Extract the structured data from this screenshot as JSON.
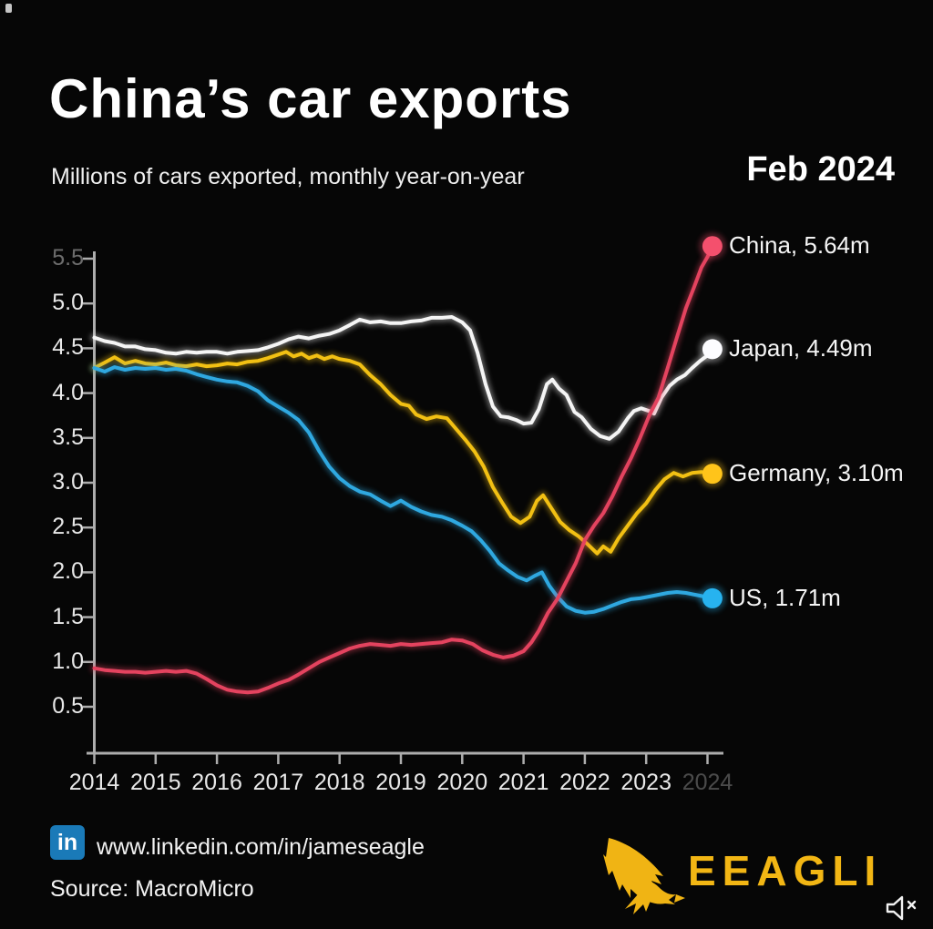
{
  "header": {
    "title": "China’s car exports",
    "subtitle": "Millions of cars exported, monthly year-on-year",
    "date_label": "Feb 2024"
  },
  "footer": {
    "linkedin_badge_text": "in",
    "linkedin_url": "www.linkedin.com/in/jameseagle",
    "source_text": "Source: MacroMicro",
    "brand_name": "EEAGLI",
    "brand_color": "#f2b614"
  },
  "chart_data": {
    "type": "line",
    "title": "China’s car exports",
    "subtitle": "Millions of cars exported, monthly year-on-year",
    "as_of": "Feb 2024",
    "grid": false,
    "legend_position": "right-of-line-ends",
    "x_axis": {
      "range": [
        2014,
        2024.25
      ],
      "tick_labels": [
        "2014",
        "2015",
        "2016",
        "2017",
        "2018",
        "2019",
        "2020",
        "2021",
        "2022",
        "2023",
        "2024"
      ],
      "dim_label": "2024"
    },
    "y_axis": {
      "range": [
        0,
        5.75
      ],
      "tick_labels": [
        "0.5",
        "1.0",
        "1.5",
        "2.0",
        "2.5",
        "3.0",
        "3.5",
        "4.0",
        "4.5",
        "5.0",
        "5.5"
      ],
      "dim_label": "5.5",
      "unit": "millions of cars"
    },
    "series": [
      {
        "name": "Japan",
        "end_label": "Japan, 4.49m",
        "end_value": 4.49,
        "color": "#f5f5f5",
        "dot_color": "#fcfcff",
        "points": [
          [
            2014.0,
            4.62
          ],
          [
            2014.17,
            4.58
          ],
          [
            2014.33,
            4.56
          ],
          [
            2014.5,
            4.52
          ],
          [
            2014.67,
            4.52
          ],
          [
            2014.83,
            4.49
          ],
          [
            2015.0,
            4.48
          ],
          [
            2015.17,
            4.45
          ],
          [
            2015.33,
            4.44
          ],
          [
            2015.5,
            4.46
          ],
          [
            2015.67,
            4.45
          ],
          [
            2015.83,
            4.46
          ],
          [
            2016.0,
            4.46
          ],
          [
            2016.17,
            4.44
          ],
          [
            2016.33,
            4.46
          ],
          [
            2016.5,
            4.47
          ],
          [
            2016.67,
            4.48
          ],
          [
            2016.83,
            4.51
          ],
          [
            2017.0,
            4.55
          ],
          [
            2017.17,
            4.6
          ],
          [
            2017.33,
            4.63
          ],
          [
            2017.5,
            4.61
          ],
          [
            2017.67,
            4.64
          ],
          [
            2017.83,
            4.66
          ],
          [
            2018.0,
            4.7
          ],
          [
            2018.17,
            4.76
          ],
          [
            2018.33,
            4.82
          ],
          [
            2018.5,
            4.79
          ],
          [
            2018.67,
            4.8
          ],
          [
            2018.83,
            4.78
          ],
          [
            2019.0,
            4.78
          ],
          [
            2019.17,
            4.8
          ],
          [
            2019.33,
            4.81
          ],
          [
            2019.5,
            4.84
          ],
          [
            2019.67,
            4.84
          ],
          [
            2019.83,
            4.85
          ],
          [
            2020.0,
            4.79
          ],
          [
            2020.13,
            4.7
          ],
          [
            2020.25,
            4.45
          ],
          [
            2020.38,
            4.1
          ],
          [
            2020.5,
            3.85
          ],
          [
            2020.63,
            3.74
          ],
          [
            2020.75,
            3.73
          ],
          [
            2020.88,
            3.7
          ],
          [
            2021.0,
            3.66
          ],
          [
            2021.13,
            3.67
          ],
          [
            2021.25,
            3.82
          ],
          [
            2021.38,
            4.1
          ],
          [
            2021.47,
            4.15
          ],
          [
            2021.58,
            4.05
          ],
          [
            2021.7,
            3.98
          ],
          [
            2021.83,
            3.79
          ],
          [
            2021.95,
            3.73
          ],
          [
            2022.1,
            3.6
          ],
          [
            2022.25,
            3.52
          ],
          [
            2022.4,
            3.49
          ],
          [
            2022.55,
            3.57
          ],
          [
            2022.7,
            3.72
          ],
          [
            2022.8,
            3.8
          ],
          [
            2022.92,
            3.83
          ],
          [
            2023.05,
            3.8
          ],
          [
            2023.13,
            3.77
          ],
          [
            2023.25,
            3.95
          ],
          [
            2023.38,
            4.08
          ],
          [
            2023.5,
            4.15
          ],
          [
            2023.63,
            4.2
          ],
          [
            2023.75,
            4.28
          ],
          [
            2023.88,
            4.36
          ],
          [
            2024.0,
            4.42
          ],
          [
            2024.08,
            4.49
          ]
        ]
      },
      {
        "name": "Germany",
        "end_label": "Germany, 3.10m",
        "end_value": 3.1,
        "color": "#f2c013",
        "dot_color": "#ffc41a",
        "points": [
          [
            2014.0,
            4.28
          ],
          [
            2014.17,
            4.34
          ],
          [
            2014.33,
            4.4
          ],
          [
            2014.5,
            4.33
          ],
          [
            2014.67,
            4.36
          ],
          [
            2014.83,
            4.33
          ],
          [
            2015.0,
            4.32
          ],
          [
            2015.17,
            4.34
          ],
          [
            2015.33,
            4.31
          ],
          [
            2015.5,
            4.3
          ],
          [
            2015.67,
            4.32
          ],
          [
            2015.83,
            4.3
          ],
          [
            2016.0,
            4.31
          ],
          [
            2016.17,
            4.33
          ],
          [
            2016.33,
            4.32
          ],
          [
            2016.5,
            4.35
          ],
          [
            2016.67,
            4.36
          ],
          [
            2016.83,
            4.39
          ],
          [
            2017.0,
            4.43
          ],
          [
            2017.13,
            4.46
          ],
          [
            2017.25,
            4.41
          ],
          [
            2017.38,
            4.44
          ],
          [
            2017.5,
            4.39
          ],
          [
            2017.63,
            4.42
          ],
          [
            2017.75,
            4.38
          ],
          [
            2017.88,
            4.41
          ],
          [
            2018.0,
            4.38
          ],
          [
            2018.17,
            4.36
          ],
          [
            2018.33,
            4.32
          ],
          [
            2018.5,
            4.2
          ],
          [
            2018.67,
            4.1
          ],
          [
            2018.83,
            3.98
          ],
          [
            2019.0,
            3.88
          ],
          [
            2019.13,
            3.86
          ],
          [
            2019.25,
            3.76
          ],
          [
            2019.42,
            3.71
          ],
          [
            2019.58,
            3.74
          ],
          [
            2019.75,
            3.72
          ],
          [
            2019.9,
            3.6
          ],
          [
            2020.05,
            3.48
          ],
          [
            2020.2,
            3.35
          ],
          [
            2020.35,
            3.18
          ],
          [
            2020.5,
            2.95
          ],
          [
            2020.65,
            2.78
          ],
          [
            2020.8,
            2.62
          ],
          [
            2020.95,
            2.55
          ],
          [
            2021.1,
            2.62
          ],
          [
            2021.22,
            2.8
          ],
          [
            2021.32,
            2.86
          ],
          [
            2021.45,
            2.72
          ],
          [
            2021.6,
            2.56
          ],
          [
            2021.75,
            2.47
          ],
          [
            2021.9,
            2.4
          ],
          [
            2022.05,
            2.31
          ],
          [
            2022.2,
            2.21
          ],
          [
            2022.3,
            2.29
          ],
          [
            2022.42,
            2.23
          ],
          [
            2022.55,
            2.38
          ],
          [
            2022.7,
            2.52
          ],
          [
            2022.85,
            2.66
          ],
          [
            2023.0,
            2.77
          ],
          [
            2023.15,
            2.92
          ],
          [
            2023.3,
            3.04
          ],
          [
            2023.45,
            3.11
          ],
          [
            2023.6,
            3.07
          ],
          [
            2023.75,
            3.11
          ],
          [
            2023.9,
            3.12
          ],
          [
            2024.08,
            3.1
          ]
        ]
      },
      {
        "name": "US",
        "end_label": "US, 1.71m",
        "end_value": 1.71,
        "color": "#2fa8e0",
        "dot_color": "#27b3ef",
        "points": [
          [
            2014.0,
            4.28
          ],
          [
            2014.17,
            4.24
          ],
          [
            2014.33,
            4.29
          ],
          [
            2014.5,
            4.26
          ],
          [
            2014.67,
            4.28
          ],
          [
            2014.83,
            4.27
          ],
          [
            2015.0,
            4.28
          ],
          [
            2015.17,
            4.26
          ],
          [
            2015.33,
            4.27
          ],
          [
            2015.5,
            4.25
          ],
          [
            2015.67,
            4.21
          ],
          [
            2015.83,
            4.18
          ],
          [
            2016.0,
            4.15
          ],
          [
            2016.17,
            4.13
          ],
          [
            2016.33,
            4.12
          ],
          [
            2016.5,
            4.08
          ],
          [
            2016.67,
            4.02
          ],
          [
            2016.83,
            3.92
          ],
          [
            2017.0,
            3.85
          ],
          [
            2017.17,
            3.78
          ],
          [
            2017.33,
            3.7
          ],
          [
            2017.5,
            3.56
          ],
          [
            2017.67,
            3.35
          ],
          [
            2017.83,
            3.18
          ],
          [
            2018.0,
            3.05
          ],
          [
            2018.17,
            2.96
          ],
          [
            2018.33,
            2.9
          ],
          [
            2018.5,
            2.87
          ],
          [
            2018.67,
            2.8
          ],
          [
            2018.83,
            2.74
          ],
          [
            2019.0,
            2.8
          ],
          [
            2019.17,
            2.73
          ],
          [
            2019.33,
            2.68
          ],
          [
            2019.5,
            2.64
          ],
          [
            2019.67,
            2.62
          ],
          [
            2019.83,
            2.58
          ],
          [
            2020.0,
            2.52
          ],
          [
            2020.15,
            2.46
          ],
          [
            2020.3,
            2.36
          ],
          [
            2020.45,
            2.24
          ],
          [
            2020.6,
            2.1
          ],
          [
            2020.75,
            2.02
          ],
          [
            2020.9,
            1.95
          ],
          [
            2021.05,
            1.91
          ],
          [
            2021.18,
            1.96
          ],
          [
            2021.3,
            2.0
          ],
          [
            2021.42,
            1.85
          ],
          [
            2021.55,
            1.73
          ],
          [
            2021.7,
            1.62
          ],
          [
            2021.85,
            1.57
          ],
          [
            2022.0,
            1.55
          ],
          [
            2022.15,
            1.56
          ],
          [
            2022.3,
            1.59
          ],
          [
            2022.45,
            1.63
          ],
          [
            2022.6,
            1.67
          ],
          [
            2022.75,
            1.7
          ],
          [
            2022.9,
            1.71
          ],
          [
            2023.05,
            1.73
          ],
          [
            2023.2,
            1.75
          ],
          [
            2023.35,
            1.77
          ],
          [
            2023.5,
            1.78
          ],
          [
            2023.65,
            1.77
          ],
          [
            2023.8,
            1.75
          ],
          [
            2023.95,
            1.73
          ],
          [
            2024.08,
            1.71
          ]
        ]
      },
      {
        "name": "China",
        "end_label": "China, 5.64m",
        "end_value": 5.64,
        "color": "#e4435f",
        "dot_color": "#f4506d",
        "points": [
          [
            2014.0,
            0.93
          ],
          [
            2014.17,
            0.91
          ],
          [
            2014.33,
            0.9
          ],
          [
            2014.5,
            0.89
          ],
          [
            2014.67,
            0.89
          ],
          [
            2014.83,
            0.88
          ],
          [
            2015.0,
            0.89
          ],
          [
            2015.17,
            0.9
          ],
          [
            2015.33,
            0.89
          ],
          [
            2015.5,
            0.9
          ],
          [
            2015.67,
            0.87
          ],
          [
            2015.83,
            0.81
          ],
          [
            2016.0,
            0.74
          ],
          [
            2016.17,
            0.69
          ],
          [
            2016.33,
            0.67
          ],
          [
            2016.5,
            0.66
          ],
          [
            2016.67,
            0.67
          ],
          [
            2016.83,
            0.71
          ],
          [
            2017.0,
            0.76
          ],
          [
            2017.17,
            0.8
          ],
          [
            2017.33,
            0.86
          ],
          [
            2017.5,
            0.93
          ],
          [
            2017.67,
            1.0
          ],
          [
            2017.83,
            1.05
          ],
          [
            2018.0,
            1.1
          ],
          [
            2018.17,
            1.15
          ],
          [
            2018.33,
            1.18
          ],
          [
            2018.5,
            1.2
          ],
          [
            2018.67,
            1.19
          ],
          [
            2018.83,
            1.18
          ],
          [
            2019.0,
            1.2
          ],
          [
            2019.17,
            1.19
          ],
          [
            2019.33,
            1.2
          ],
          [
            2019.5,
            1.21
          ],
          [
            2019.67,
            1.22
          ],
          [
            2019.83,
            1.25
          ],
          [
            2020.0,
            1.24
          ],
          [
            2020.17,
            1.2
          ],
          [
            2020.33,
            1.13
          ],
          [
            2020.5,
            1.08
          ],
          [
            2020.67,
            1.05
          ],
          [
            2020.83,
            1.07
          ],
          [
            2021.0,
            1.12
          ],
          [
            2021.13,
            1.22
          ],
          [
            2021.25,
            1.35
          ],
          [
            2021.4,
            1.55
          ],
          [
            2021.55,
            1.7
          ],
          [
            2021.7,
            1.9
          ],
          [
            2021.85,
            2.1
          ],
          [
            2022.0,
            2.36
          ],
          [
            2022.15,
            2.52
          ],
          [
            2022.3,
            2.66
          ],
          [
            2022.45,
            2.85
          ],
          [
            2022.6,
            3.07
          ],
          [
            2022.75,
            3.27
          ],
          [
            2022.9,
            3.5
          ],
          [
            2023.05,
            3.75
          ],
          [
            2023.2,
            3.95
          ],
          [
            2023.35,
            4.28
          ],
          [
            2023.5,
            4.62
          ],
          [
            2023.65,
            4.95
          ],
          [
            2023.78,
            5.18
          ],
          [
            2023.9,
            5.4
          ],
          [
            2024.0,
            5.52
          ],
          [
            2024.08,
            5.64
          ]
        ]
      }
    ]
  }
}
